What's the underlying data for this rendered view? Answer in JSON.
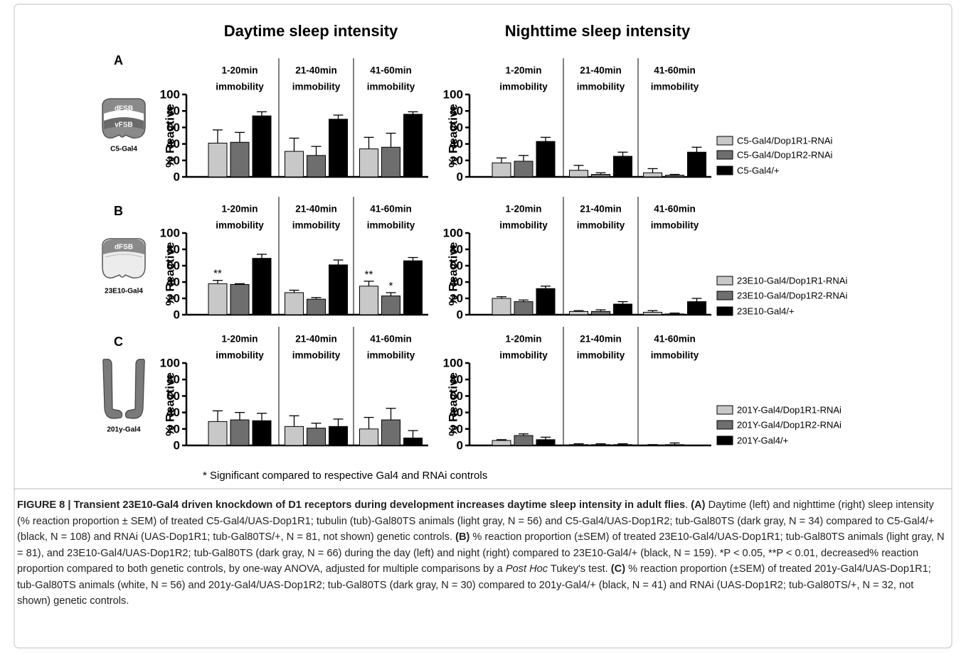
{
  "column_titles": [
    "Daytime sleep intensity",
    "Nighttime sleep intensity"
  ],
  "panels": [
    {
      "letter": "A",
      "icon_labels": [
        "dFSB",
        "vFSB",
        "C5-Gal4"
      ]
    },
    {
      "letter": "B",
      "icon_labels": [
        "dFSB",
        "23E10-Gal4"
      ]
    },
    {
      "letter": "C",
      "icon_labels": [
        "201y-Gal4"
      ]
    }
  ],
  "chart_data": [
    {
      "type": "bar",
      "ylabel": "% Reactive",
      "groups": [
        [
          "1-20min",
          "immobility"
        ],
        [
          "21-40min",
          "immobility"
        ],
        [
          "41-60min",
          "immobility"
        ]
      ],
      "ylim": [
        0,
        100
      ],
      "yticks": [
        0,
        20,
        40,
        60,
        80,
        100
      ],
      "series": [
        {
          "color": "#c8c8c8",
          "values": [
            41,
            31,
            34
          ],
          "errors": [
            16,
            16,
            14
          ]
        },
        {
          "color": "#6e6e6e",
          "values": [
            42,
            26,
            36
          ],
          "errors": [
            12,
            11,
            17
          ]
        },
        {
          "color": "#000000",
          "values": [
            74,
            70,
            76
          ],
          "errors": [
            5,
            5,
            3
          ]
        }
      ]
    },
    {
      "type": "bar",
      "ylabel": "% Reactive",
      "groups": [
        [
          "1-20min",
          "immobility"
        ],
        [
          "21-40min",
          "immobility"
        ],
        [
          "41-60min",
          "immobility"
        ]
      ],
      "ylim": [
        0,
        100
      ],
      "yticks": [
        0,
        20,
        40,
        60,
        80,
        100
      ],
      "series": [
        {
          "name": "C5-Gal4/Dop1R1-RNAi",
          "color": "#c8c8c8",
          "values": [
            17,
            8,
            5
          ],
          "errors": [
            6,
            6,
            5
          ]
        },
        {
          "name": "C5-Gal4/Dop1R2-RNAi",
          "color": "#6e6e6e",
          "values": [
            19,
            3,
            2
          ],
          "errors": [
            7,
            2,
            1
          ]
        },
        {
          "name": "C5-Gal4/+",
          "color": "#000000",
          "values": [
            43,
            25,
            30
          ],
          "errors": [
            5,
            5,
            6
          ]
        }
      ]
    },
    {
      "type": "bar",
      "ylabel": "% Reactive",
      "groups": [
        [
          "1-20min",
          "immobility"
        ],
        [
          "21-40min",
          "immobility"
        ],
        [
          "41-60min",
          "immobility"
        ]
      ],
      "ylim": [
        0,
        100
      ],
      "yticks": [
        0,
        20,
        40,
        60,
        80,
        100
      ],
      "series": [
        {
          "color": "#c8c8c8",
          "values": [
            38,
            27,
            35
          ],
          "errors": [
            4,
            3,
            6
          ],
          "significance": [
            "**",
            null,
            "**"
          ]
        },
        {
          "color": "#6e6e6e",
          "values": [
            37,
            19,
            23
          ],
          "errors": [
            1,
            2,
            4
          ],
          "significance": [
            null,
            null,
            "*"
          ]
        },
        {
          "color": "#000000",
          "values": [
            69,
            61,
            66
          ],
          "errors": [
            5,
            6,
            4
          ]
        }
      ]
    },
    {
      "type": "bar",
      "ylabel": "% Reactive",
      "groups": [
        [
          "1-20min",
          "immobility"
        ],
        [
          "21-40min",
          "immobility"
        ],
        [
          "41-60min",
          "immobility"
        ]
      ],
      "ylim": [
        0,
        100
      ],
      "yticks": [
        0,
        20,
        40,
        60,
        80,
        100
      ],
      "series": [
        {
          "name": "23E10-Gal4/Dop1R1-RNAi",
          "color": "#c8c8c8",
          "values": [
            20,
            4,
            3
          ],
          "errors": [
            2,
            1,
            2
          ]
        },
        {
          "name": "23E10-Gal4/Dop1R2-RNAi",
          "color": "#6e6e6e",
          "values": [
            16,
            4,
            1
          ],
          "errors": [
            2,
            2,
            1
          ]
        },
        {
          "name": "23E10-Gal4/+",
          "color": "#000000",
          "values": [
            32,
            13,
            16
          ],
          "errors": [
            3,
            3,
            4
          ]
        }
      ]
    },
    {
      "type": "bar",
      "ylabel": "% Reactive",
      "groups": [
        [
          "1-20min",
          "immobility"
        ],
        [
          "21-40min",
          "immobility"
        ],
        [
          "41-60min",
          "immobility"
        ]
      ],
      "ylim": [
        0,
        100
      ],
      "yticks": [
        0,
        20,
        40,
        60,
        80,
        100
      ],
      "series": [
        {
          "color": "#c8c8c8",
          "values": [
            29,
            23,
            20
          ],
          "errors": [
            13,
            13,
            14
          ]
        },
        {
          "color": "#6e6e6e",
          "values": [
            31,
            21,
            31
          ],
          "errors": [
            9,
            6,
            14
          ]
        },
        {
          "color": "#000000",
          "values": [
            30,
            23,
            9
          ],
          "errors": [
            9,
            9,
            9
          ]
        }
      ]
    },
    {
      "type": "bar",
      "ylabel": "% Reactive",
      "groups": [
        [
          "1-20min",
          "immobility"
        ],
        [
          "21-40min",
          "immobility"
        ],
        [
          "41-60min",
          "immobility"
        ]
      ],
      "ylim": [
        0,
        100
      ],
      "yticks": [
        0,
        20,
        40,
        60,
        80,
        100
      ],
      "series": [
        {
          "name": "201Y-Gal4/Dop1R1-RNAi",
          "color": "#c8c8c8",
          "values": [
            6,
            1,
            0.5
          ],
          "errors": [
            1,
            1,
            0.5
          ]
        },
        {
          "name": "201Y-Gal4/Dop1R2-RNAi",
          "color": "#6e6e6e",
          "values": [
            12,
            1,
            1
          ],
          "errors": [
            2,
            1,
            2
          ]
        },
        {
          "name": "201Y-Gal4/+",
          "color": "#000000",
          "values": [
            7,
            1,
            0
          ],
          "errors": [
            3,
            1,
            0
          ]
        }
      ]
    }
  ],
  "footnote": "* Significant compared to respective Gal4 and RNAi controls",
  "caption": [
    {
      "text": "FIGURE 8 | Transient 23E10-Gal4 driven knockdown of D1 receptors during development increases daytime sleep intensity in adult flies",
      "style": "bold"
    },
    {
      "text": ". ",
      "style": "normal"
    },
    {
      "text": "(A)",
      "style": "bold"
    },
    {
      "text": " Daytime (left) and nighttime (right) sleep intensity (% reaction proportion ± SEM) of treated C5-Gal4/UAS-Dop1R1; tubulin (tub)-Gal80TS animals (light gray, N = 56) and C5-Gal4/UAS-Dop1R2; tub-Gal80TS (dark gray, N = 34) compared to C5-Gal4/+ (black, N = 108) and RNAi (UAS-Dop1R1; tub-Gal80TS/+, N = 81, not shown) genetic controls. ",
      "style": "normal"
    },
    {
      "text": "(B)",
      "style": "bold"
    },
    {
      "text": " % reaction proportion (±SEM) of treated 23E10-Gal4/UAS-Dop1R1; tub-Gal80TS animals (light gray, N = 81), and 23E10-Gal4/UAS-Dop1R2; tub-Gal80TS (dark gray, N = 66) during the day (left) and night (right) compared to 23E10-Gal4/+ (black, N = 159). *P < 0.05, **P < 0.01, decreased% reaction proportion compared to both genetic controls, by one-way ANOVA, adjusted for multiple comparisons by a ",
      "style": "normal"
    },
    {
      "text": "Post Hoc",
      "style": "italic"
    },
    {
      "text": " Tukey's test. ",
      "style": "normal"
    },
    {
      "text": "(C)",
      "style": "bold"
    },
    {
      "text": " % reaction proportion (±SEM) of treated 201y-Gal4/UAS-Dop1R1; tub-Gal80TS animals (white, N = 56) and 201y-Gal4/UAS-Dop1R2; tub-Gal80TS (dark gray, N = 30) compared to 201y-Gal4/+ (black, N = 41) and RNAi (UAS-Dop1R2; tub-Gal80TS/+, N = 32, not shown) genetic controls.",
      "style": "normal"
    }
  ]
}
